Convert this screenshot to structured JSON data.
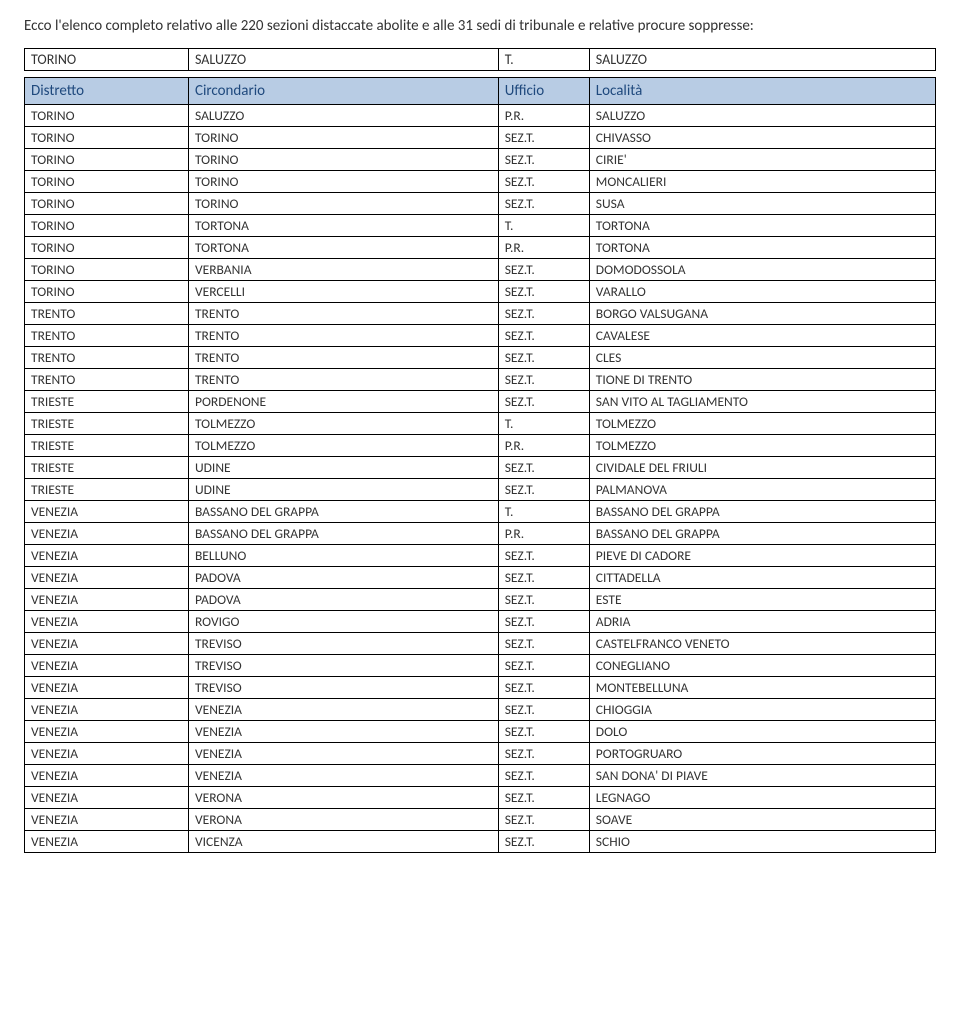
{
  "intro_text": "Ecco l'elenco completo relativo alle 220 sezioni distaccate abolite e alle 31 sedi di tribunale e relative procure soppresse:",
  "top_row": [
    "TORINO",
    "SALUZZO",
    "T.",
    "SALUZZO"
  ],
  "headers": [
    "Distretto",
    "Circondario",
    "Ufficio",
    "Località"
  ],
  "header_bg": "#b8cce4",
  "header_color": "#1f497d",
  "border_color": "#000000",
  "rows": [
    [
      "TORINO",
      "SALUZZO",
      "P.R.",
      "SALUZZO"
    ],
    [
      "TORINO",
      "TORINO",
      "SEZ.T.",
      "CHIVASSO"
    ],
    [
      "TORINO",
      "TORINO",
      "SEZ.T.",
      "CIRIE'"
    ],
    [
      "TORINO",
      "TORINO",
      "SEZ.T.",
      "MONCALIERI"
    ],
    [
      "TORINO",
      "TORINO",
      "SEZ.T.",
      "SUSA"
    ],
    [
      "TORINO",
      "TORTONA",
      "T.",
      "TORTONA"
    ],
    [
      "TORINO",
      "TORTONA",
      "P.R.",
      "TORTONA"
    ],
    [
      "TORINO",
      "VERBANIA",
      "SEZ.T.",
      "DOMODOSSOLA"
    ],
    [
      "TORINO",
      "VERCELLI",
      "SEZ.T.",
      "VARALLO"
    ],
    [
      "TRENTO",
      "TRENTO",
      "SEZ.T.",
      "BORGO VALSUGANA"
    ],
    [
      "TRENTO",
      "TRENTO",
      "SEZ.T.",
      "CAVALESE"
    ],
    [
      "TRENTO",
      "TRENTO",
      "SEZ.T.",
      "CLES"
    ],
    [
      "TRENTO",
      "TRENTO",
      "SEZ.T.",
      "TIONE DI TRENTO"
    ],
    [
      "TRIESTE",
      "PORDENONE",
      "SEZ.T.",
      "SAN VITO AL TAGLIAMENTO"
    ],
    [
      "TRIESTE",
      "TOLMEZZO",
      "T.",
      "TOLMEZZO"
    ],
    [
      "TRIESTE",
      "TOLMEZZO",
      "P.R.",
      "TOLMEZZO"
    ],
    [
      "TRIESTE",
      "UDINE",
      "SEZ.T.",
      "CIVIDALE DEL FRIULI"
    ],
    [
      "TRIESTE",
      "UDINE",
      "SEZ.T.",
      "PALMANOVA"
    ],
    [
      "VENEZIA",
      "BASSANO DEL GRAPPA",
      "T.",
      "BASSANO DEL GRAPPA"
    ],
    [
      "VENEZIA",
      "BASSANO DEL GRAPPA",
      "P.R.",
      "BASSANO DEL GRAPPA"
    ],
    [
      "VENEZIA",
      "BELLUNO",
      "SEZ.T.",
      "PIEVE DI CADORE"
    ],
    [
      "VENEZIA",
      "PADOVA",
      "SEZ.T.",
      "CITTADELLA"
    ],
    [
      "VENEZIA",
      "PADOVA",
      "SEZ.T.",
      "ESTE"
    ],
    [
      "VENEZIA",
      "ROVIGO",
      "SEZ.T.",
      "ADRIA"
    ],
    [
      "VENEZIA",
      "TREVISO",
      "SEZ.T.",
      "CASTELFRANCO VENETO"
    ],
    [
      "VENEZIA",
      "TREVISO",
      "SEZ.T.",
      "CONEGLIANO"
    ],
    [
      "VENEZIA",
      "TREVISO",
      "SEZ.T.",
      "MONTEBELLUNA"
    ],
    [
      "VENEZIA",
      "VENEZIA",
      "SEZ.T.",
      "CHIOGGIA"
    ],
    [
      "VENEZIA",
      "VENEZIA",
      "SEZ.T.",
      "DOLO"
    ],
    [
      "VENEZIA",
      "VENEZIA",
      "SEZ.T.",
      "PORTOGRUARO"
    ],
    [
      "VENEZIA",
      "VENEZIA",
      "SEZ.T.",
      "SAN DONA' DI PIAVE"
    ],
    [
      "VENEZIA",
      "VERONA",
      "SEZ.T.",
      "LEGNAGO"
    ],
    [
      "VENEZIA",
      "VERONA",
      "SEZ.T.",
      "SOAVE"
    ],
    [
      "VENEZIA",
      "VICENZA",
      "SEZ.T.",
      "SCHIO"
    ]
  ]
}
